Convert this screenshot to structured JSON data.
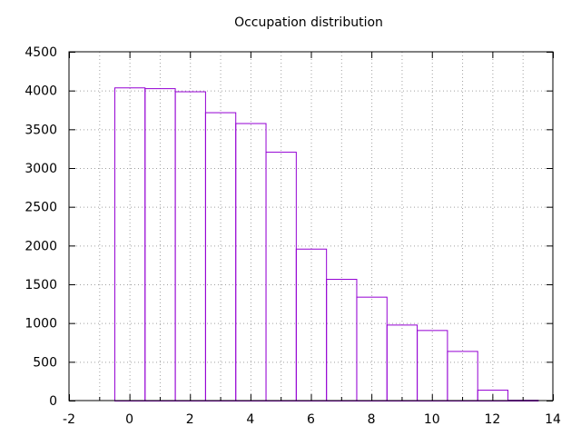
{
  "chart_data": {
    "type": "bar",
    "title": "Occupation distribution",
    "xlabel": "",
    "ylabel": "",
    "xlim": [
      -2,
      14
    ],
    "ylim": [
      0,
      4500
    ],
    "xticks": [
      -2,
      0,
      2,
      4,
      6,
      8,
      10,
      12,
      14
    ],
    "yticks": [
      0,
      500,
      1000,
      1500,
      2000,
      2500,
      3000,
      3500,
      4000,
      4500
    ],
    "grid": true,
    "bar_width": 1,
    "bar_color": "#9400d3",
    "grid_color": "#a0a0a0",
    "x": [
      0,
      1,
      2,
      3,
      4,
      5,
      6,
      7,
      8,
      9,
      10,
      11,
      12,
      13
    ],
    "values": [
      4040,
      4030,
      3990,
      3720,
      3580,
      3210,
      1960,
      1570,
      1340,
      980,
      910,
      640,
      140,
      10
    ]
  }
}
